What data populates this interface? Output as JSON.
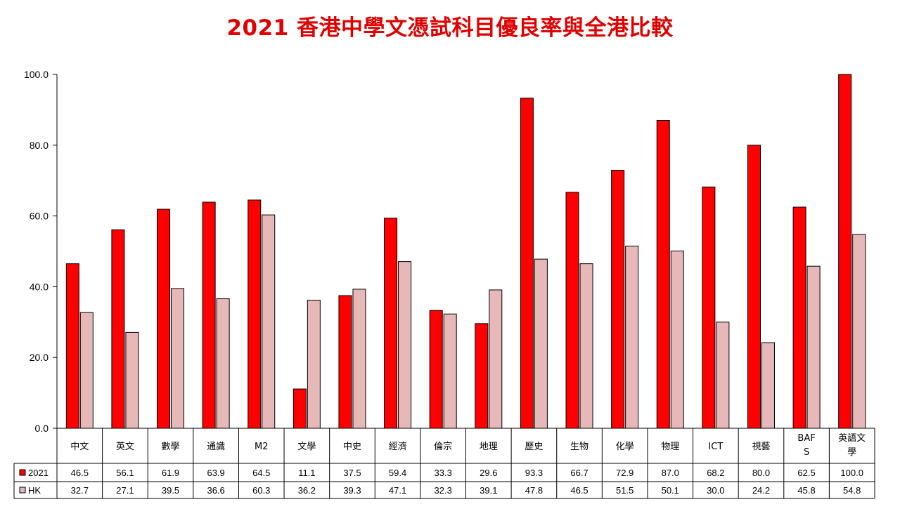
{
  "chart_data": {
    "type": "bar",
    "title": "2021 香港中學文憑試科目優良率與全港比較",
    "categories": [
      "中文",
      "英文",
      "數學",
      "通識",
      "M2",
      "文學",
      "中史",
      "經濟",
      "倫宗",
      "地理",
      "歷史",
      "生物",
      "化學",
      "物理",
      "ICT",
      "視藝",
      "BAFS",
      "英語文學"
    ],
    "series": [
      {
        "name": "2021",
        "color": "#ff0000",
        "values": [
          46.5,
          56.1,
          61.9,
          63.9,
          64.5,
          11.1,
          37.5,
          59.4,
          33.3,
          29.6,
          93.3,
          66.7,
          72.9,
          87.0,
          68.2,
          80.0,
          62.5,
          100.0
        ]
      },
      {
        "name": "HK",
        "color": "#e6b8b7",
        "values": [
          32.7,
          27.1,
          39.5,
          36.6,
          60.3,
          36.2,
          39.3,
          47.1,
          32.3,
          39.1,
          47.8,
          46.5,
          51.5,
          50.1,
          30.0,
          24.2,
          45.8,
          54.8
        ]
      }
    ],
    "yticks": [
      "0.0",
      "20.0",
      "40.0",
      "60.0",
      "80.0",
      "100.0"
    ],
    "ylim": [
      0,
      100
    ],
    "grid": false,
    "legend": "data table rows"
  }
}
